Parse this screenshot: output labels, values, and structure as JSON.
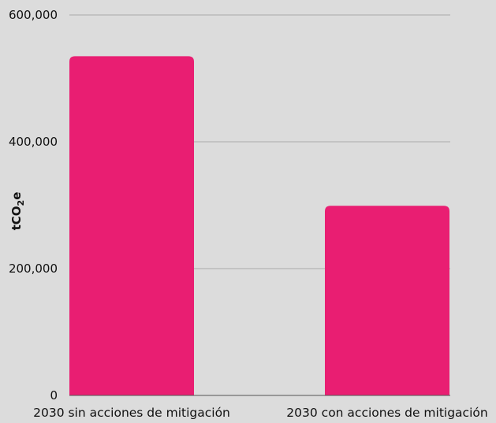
{
  "chart_data": {
    "type": "bar",
    "title": "",
    "xlabel": "",
    "ylabel": {
      "main": "tCO",
      "subscript": "2",
      "suffix": "e"
    },
    "categories": [
      "2030 sin acciones de mitigación",
      "2030 con acciones de mitigación"
    ],
    "values": [
      535000,
      299000
    ],
    "ylim": [
      0,
      600000
    ],
    "yticks": [
      0,
      200000,
      400000,
      600000
    ],
    "ytick_labels": [
      "0",
      "200,000",
      "400,000",
      "600,000"
    ],
    "grid": true,
    "legend": "none",
    "colors": {
      "bar": "#e91e72",
      "background": "#dcdcdc",
      "grid": "#9a9a9a",
      "axis": "#555555",
      "text": "#111111"
    }
  }
}
